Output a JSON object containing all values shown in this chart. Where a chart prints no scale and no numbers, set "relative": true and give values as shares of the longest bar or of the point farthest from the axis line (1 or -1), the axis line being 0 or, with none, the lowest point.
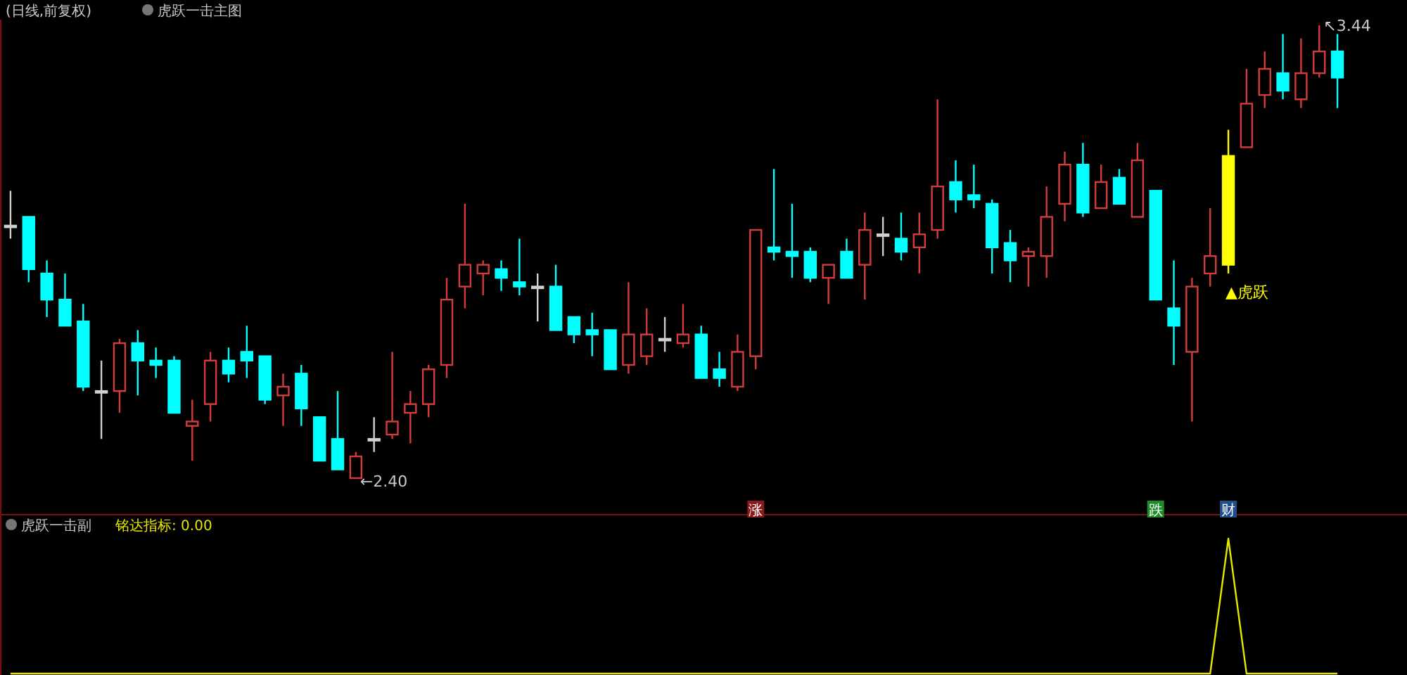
{
  "chart_data": [
    {
      "type": "candlestick",
      "title": "(日线,前复权)",
      "subtitle": "虎跃一击主图",
      "categories": [
        null,
        null,
        null,
        null,
        null,
        null,
        null,
        null,
        null,
        null,
        null,
        null,
        null,
        null,
        null,
        null,
        null,
        null,
        null,
        null,
        null,
        null,
        null,
        null,
        null,
        null,
        null,
        null,
        null,
        null,
        null,
        null,
        null,
        null,
        null,
        null,
        null,
        null,
        null,
        null,
        null,
        null,
        null,
        null,
        null,
        null,
        null,
        null,
        null,
        null,
        null,
        null,
        null,
        null,
        null,
        null,
        null,
        null,
        null,
        null,
        null,
        null,
        null,
        null,
        null,
        null,
        null,
        null,
        null,
        null,
        null,
        null,
        null,
        null
      ],
      "ohlc": [
        [
          2.98,
          3.06,
          2.95,
          2.98
        ],
        [
          3.0,
          3.0,
          2.85,
          2.88
        ],
        [
          2.87,
          2.9,
          2.77,
          2.81
        ],
        [
          2.81,
          2.87,
          2.75,
          2.75
        ],
        [
          2.76,
          2.8,
          2.6,
          2.61
        ],
        [
          2.6,
          2.67,
          2.49,
          2.6
        ],
        [
          2.6,
          2.72,
          2.55,
          2.71
        ],
        [
          2.71,
          2.74,
          2.59,
          2.67
        ],
        [
          2.67,
          2.7,
          2.63,
          2.66
        ],
        [
          2.67,
          2.68,
          2.55,
          2.55
        ],
        [
          2.52,
          2.58,
          2.44,
          2.53
        ],
        [
          2.57,
          2.69,
          2.53,
          2.67
        ],
        [
          2.67,
          2.7,
          2.62,
          2.64
        ],
        [
          2.69,
          2.75,
          2.63,
          2.67
        ],
        [
          2.68,
          2.68,
          2.57,
          2.58
        ],
        [
          2.59,
          2.64,
          2.52,
          2.61
        ],
        [
          2.64,
          2.66,
          2.52,
          2.56
        ],
        [
          2.54,
          2.54,
          2.44,
          2.44
        ],
        [
          2.49,
          2.6,
          2.42,
          2.42
        ],
        [
          2.4,
          2.46,
          2.4,
          2.45
        ],
        [
          2.49,
          2.54,
          2.46,
          2.49
        ],
        [
          2.5,
          2.69,
          2.49,
          2.53
        ],
        [
          2.55,
          2.6,
          2.48,
          2.57
        ],
        [
          2.57,
          2.66,
          2.54,
          2.65
        ],
        [
          2.66,
          2.86,
          2.63,
          2.81
        ],
        [
          2.84,
          3.03,
          2.79,
          2.89
        ],
        [
          2.87,
          2.9,
          2.82,
          2.89
        ],
        [
          2.88,
          2.9,
          2.83,
          2.86
        ],
        [
          2.85,
          2.95,
          2.82,
          2.84
        ],
        [
          2.84,
          2.87,
          2.76,
          2.84
        ],
        [
          2.84,
          2.89,
          2.74,
          2.74
        ],
        [
          2.77,
          2.77,
          2.71,
          2.73
        ],
        [
          2.74,
          2.78,
          2.68,
          2.73
        ],
        [
          2.74,
          2.74,
          2.65,
          2.65
        ],
        [
          2.66,
          2.85,
          2.64,
          2.73
        ],
        [
          2.68,
          2.79,
          2.66,
          2.73
        ],
        [
          2.72,
          2.77,
          2.69,
          2.72
        ],
        [
          2.71,
          2.8,
          2.7,
          2.73
        ],
        [
          2.73,
          2.75,
          2.63,
          2.63
        ],
        [
          2.65,
          2.69,
          2.61,
          2.63
        ],
        [
          2.61,
          2.73,
          2.6,
          2.69
        ],
        [
          2.68,
          2.97,
          2.65,
          2.97
        ],
        [
          2.93,
          3.11,
          2.9,
          2.92
        ],
        [
          2.92,
          3.03,
          2.86,
          2.91
        ],
        [
          2.92,
          2.93,
          2.85,
          2.86
        ],
        [
          2.86,
          2.89,
          2.8,
          2.89
        ],
        [
          2.92,
          2.95,
          2.86,
          2.86
        ],
        [
          2.89,
          3.01,
          2.81,
          2.97
        ],
        [
          2.96,
          3.0,
          2.91,
          2.96
        ],
        [
          2.95,
          3.01,
          2.9,
          2.92
        ],
        [
          2.93,
          3.01,
          2.87,
          2.96
        ],
        [
          2.97,
          3.27,
          2.95,
          3.07
        ],
        [
          3.08,
          3.13,
          3.01,
          3.04
        ],
        [
          3.05,
          3.12,
          3.02,
          3.04
        ],
        [
          3.03,
          3.04,
          2.87,
          2.93
        ],
        [
          2.94,
          2.97,
          2.85,
          2.9
        ],
        [
          2.91,
          2.93,
          2.84,
          2.92
        ],
        [
          2.91,
          3.07,
          2.86,
          3.0
        ],
        [
          3.03,
          3.15,
          2.99,
          3.12
        ],
        [
          3.12,
          3.17,
          3.0,
          3.01
        ],
        [
          3.02,
          3.12,
          3.02,
          3.08
        ],
        [
          3.09,
          3.11,
          3.03,
          3.03
        ],
        [
          3.0,
          3.17,
          3.0,
          3.13
        ],
        [
          3.06,
          3.06,
          2.81,
          2.81
        ],
        [
          2.79,
          2.9,
          2.66,
          2.75
        ],
        [
          2.69,
          2.86,
          2.53,
          2.84
        ],
        [
          2.87,
          3.02,
          2.84,
          2.91
        ],
        [
          2.89,
          3.2,
          2.87,
          3.14
        ],
        [
          3.16,
          3.34,
          3.16,
          3.26
        ],
        [
          3.28,
          3.38,
          3.25,
          3.34
        ],
        [
          3.33,
          3.42,
          3.27,
          3.29
        ],
        [
          3.27,
          3.41,
          3.25,
          3.33
        ],
        [
          3.33,
          3.44,
          3.32,
          3.38
        ],
        [
          3.38,
          3.42,
          3.25,
          3.32
        ]
      ],
      "colors": [
        "#d0d0d0",
        "#00ffff",
        "#00ffff",
        "#00ffff",
        "#00ffff",
        "#d0d0d0",
        "#d23c3c",
        "#00ffff",
        "#00ffff",
        "#00ffff",
        "#d23c3c",
        "#d23c3c",
        "#00ffff",
        "#00ffff",
        "#00ffff",
        "#d23c3c",
        "#00ffff",
        "#00ffff",
        "#00ffff",
        "#d23c3c",
        "#d0d0d0",
        "#d23c3c",
        "#d23c3c",
        "#d23c3c",
        "#d23c3c",
        "#d23c3c",
        "#d23c3c",
        "#00ffff",
        "#00ffff",
        "#d0d0d0",
        "#00ffff",
        "#00ffff",
        "#00ffff",
        "#00ffff",
        "#d23c3c",
        "#d23c3c",
        "#d0d0d0",
        "#d23c3c",
        "#00ffff",
        "#00ffff",
        "#d23c3c",
        "#d23c3c",
        "#00ffff",
        "#00ffff",
        "#00ffff",
        "#d23c3c",
        "#00ffff",
        "#d23c3c",
        "#d0d0d0",
        "#00ffff",
        "#d23c3c",
        "#d23c3c",
        "#00ffff",
        "#00ffff",
        "#00ffff",
        "#00ffff",
        "#d23c3c",
        "#d23c3c",
        "#d23c3c",
        "#00ffff",
        "#d23c3c",
        "#00ffff",
        "#d23c3c",
        "#00ffff",
        "#00ffff",
        "#d23c3c",
        "#d23c3c",
        "#ffff00",
        "#d23c3c",
        "#d23c3c",
        "#00ffff",
        "#d23c3c",
        "#d23c3c",
        "#00ffff"
      ],
      "annotations": [
        "←2.40",
        "↖3.44",
        "▲虎跃"
      ]
    },
    {
      "type": "line",
      "title": "虎跃一击副",
      "relative": true,
      "categories": [
        null,
        null,
        null,
        null,
        null,
        null,
        null,
        null,
        null,
        null,
        null,
        null,
        null,
        null,
        null,
        null,
        null,
        null,
        null,
        null,
        null,
        null,
        null,
        null,
        null,
        null,
        null,
        null,
        null,
        null,
        null,
        null,
        null,
        null,
        null,
        null,
        null,
        null,
        null,
        null,
        null,
        null,
        null,
        null,
        null,
        null,
        null,
        null,
        null,
        null,
        null,
        null,
        null,
        null,
        null,
        null,
        null,
        null,
        null,
        null,
        null,
        null,
        null,
        null,
        null,
        null,
        null,
        null,
        null,
        null,
        null,
        null,
        null,
        null
      ],
      "series": [
        {
          "color": "#e6e600",
          "values": [
            0,
            0,
            0,
            0,
            0,
            0,
            0,
            0,
            0,
            0,
            0,
            0,
            0,
            0,
            0,
            0,
            0,
            0,
            0,
            0,
            0,
            0,
            0,
            0,
            0,
            0,
            0,
            0,
            0,
            0,
            0,
            0,
            0,
            0,
            0,
            0,
            0,
            0,
            0,
            0,
            0,
            0,
            0,
            0,
            0,
            0,
            0,
            0,
            0,
            0,
            0,
            0,
            0,
            0,
            0,
            0,
            0,
            0,
            0,
            0,
            0,
            0,
            0,
            0,
            0,
            0,
            0,
            1,
            0,
            0,
            0,
            0,
            0,
            0
          ]
        }
      ],
      "annotations": [
        "铭达指标: 0.00",
        "涨",
        "跌",
        "财"
      ]
    }
  ]
}
